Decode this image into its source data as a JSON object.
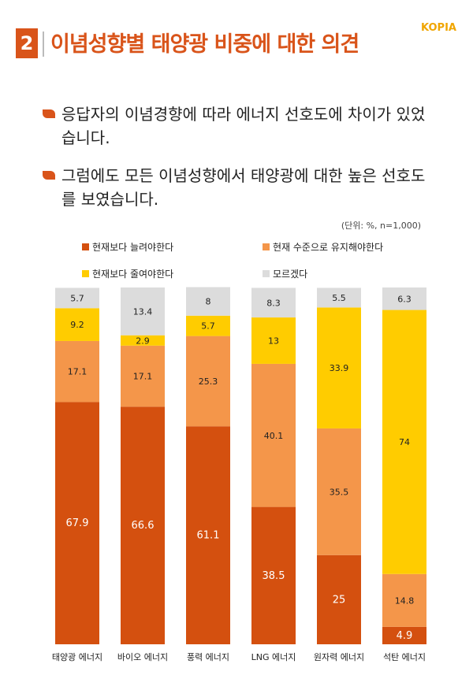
{
  "header": {
    "section_number": "2",
    "title": "이념성향별 태양광 비중에 대한 의견",
    "logo": "KOPIA"
  },
  "bullets": [
    "응답자의 이념경향에 따라 에너지 선호도에 차이가 있었습니다.",
    "그럼에도 모든 이념성향에서 태양광에 대한 높은 선호도를 보였습니다."
  ],
  "chart_data": {
    "type": "bar",
    "stacked": true,
    "unit_note": "(단위: %, n=1,000)",
    "legend_placement": "top",
    "grid": false,
    "categories": [
      "태양광 에너지",
      "바이오 에너지",
      "풍력 에너지",
      "LNG 에너지",
      "원자력 에너지",
      "석탄 에너지"
    ],
    "series": [
      {
        "name": "현재보다 늘려야한다",
        "color": "#d4500f",
        "values": [
          67.9,
          66.6,
          61.1,
          38.5,
          25,
          4.9
        ]
      },
      {
        "name": "현재 수준으로 유지해야한다",
        "color": "#f4964a",
        "values": [
          17.1,
          17.1,
          25.3,
          40.1,
          35.5,
          14.8
        ]
      },
      {
        "name": "현재보다 줄여야한다",
        "color": "#ffcc00",
        "values": [
          9.2,
          2.9,
          5.7,
          13,
          33.9,
          74
        ]
      },
      {
        "name": "모르겠다",
        "color": "#dcdcdc",
        "values": [
          5.7,
          13.4,
          8,
          8.3,
          5.5,
          6.3
        ]
      }
    ],
    "ylim": [
      0,
      100
    ]
  }
}
